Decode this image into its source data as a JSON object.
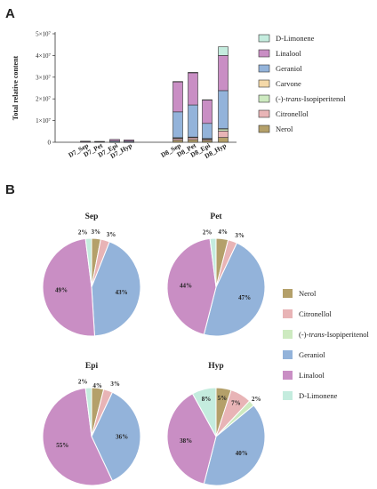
{
  "panel_a_letter": "A",
  "panel_b_letter": "B",
  "chart_data": [
    {
      "type": "bar",
      "stacked": true,
      "ylabel": "Total relative content",
      "ylim": [
        0,
        50000000
      ],
      "yticks": [
        {
          "value": 0,
          "label": "0"
        },
        {
          "value": 10000000,
          "label": "1×10⁷"
        },
        {
          "value": 20000000,
          "label": "2×10⁷"
        },
        {
          "value": 30000000,
          "label": "3×10⁷"
        },
        {
          "value": 40000000,
          "label": "4×10⁷"
        },
        {
          "value": 50000000,
          "label": "5×10⁷"
        }
      ],
      "categories": [
        "D7_Sep",
        "D7_Pet",
        "D7_Epi",
        "D7_Hyp",
        "D8_Sep",
        "D8_Pet",
        "D8_Epi",
        "D8_Hyp"
      ],
      "legend_position": "right",
      "series": [
        {
          "name": "Nerol",
          "color": "#b4a06a",
          "values": [
            0,
            0,
            50000,
            50000,
            900000,
            1200000,
            750000,
            2200000
          ]
        },
        {
          "name": "Citronellol",
          "color": "#e8b4b6",
          "values": [
            0,
            0,
            50000,
            50000,
            800000,
            900000,
            550000,
            3000000
          ]
        },
        {
          "name": "(-)-trans-Isopiperitenol",
          "color": "#cdeac0",
          "values": [
            0,
            0,
            0,
            0,
            300000,
            200000,
            300000,
            900000
          ]
        },
        {
          "name": "Carvone",
          "color": "#f5d9a8",
          "values": [
            0,
            0,
            0,
            0,
            100000,
            100000,
            100000,
            200000
          ]
        },
        {
          "name": "Geraniol",
          "color": "#93b3da",
          "values": [
            200000,
            200000,
            500000,
            400000,
            11900000,
            14800000,
            7000000,
            17500000
          ]
        },
        {
          "name": "Linalool",
          "color": "#c98ec4",
          "values": [
            300000,
            200000,
            700000,
            600000,
            13800000,
            14800000,
            10800000,
            16200000
          ]
        },
        {
          "name": "D-Limonene",
          "color": "#c4ecde",
          "values": [
            0,
            0,
            0,
            0,
            200000,
            200000,
            100000,
            4000000
          ]
        }
      ]
    },
    {
      "type": "pie",
      "title": "Sep",
      "slices": [
        {
          "name": "Nerol",
          "value": 3,
          "label": "3%"
        },
        {
          "name": "Citronellol",
          "value": 3,
          "label": "3%"
        },
        {
          "name": "(-)-trans-Isopiperitenol",
          "value": 0,
          "label": ""
        },
        {
          "name": "Geraniol",
          "value": 43,
          "label": "43%"
        },
        {
          "name": "Linalool",
          "value": 49,
          "label": "49%"
        },
        {
          "name": "D-Limonene",
          "value": 2,
          "label": "2%"
        }
      ]
    },
    {
      "type": "pie",
      "title": "Pet",
      "slices": [
        {
          "name": "Nerol",
          "value": 4,
          "label": "4%"
        },
        {
          "name": "Citronellol",
          "value": 3,
          "label": "3%"
        },
        {
          "name": "(-)-trans-Isopiperitenol",
          "value": 0,
          "label": ""
        },
        {
          "name": "Geraniol",
          "value": 47,
          "label": "47%"
        },
        {
          "name": "Linalool",
          "value": 44,
          "label": "44%"
        },
        {
          "name": "D-Limonene",
          "value": 2,
          "label": "2%"
        }
      ]
    },
    {
      "type": "pie",
      "title": "Epi",
      "slices": [
        {
          "name": "Nerol",
          "value": 4,
          "label": "4%"
        },
        {
          "name": "Citronellol",
          "value": 3,
          "label": "3%"
        },
        {
          "name": "(-)-trans-Isopiperitenol",
          "value": 0,
          "label": ""
        },
        {
          "name": "Geraniol",
          "value": 36,
          "label": "36%"
        },
        {
          "name": "Linalool",
          "value": 55,
          "label": "55%"
        },
        {
          "name": "D-Limonene",
          "value": 2,
          "label": "2%"
        }
      ]
    },
    {
      "type": "pie",
      "title": "Hyp",
      "slices": [
        {
          "name": "Nerol",
          "value": 5,
          "label": "5%"
        },
        {
          "name": "Citronellol",
          "value": 7,
          "label": "7%"
        },
        {
          "name": "(-)-trans-Isopiperitenol",
          "value": 2,
          "label": "2%"
        },
        {
          "name": "Geraniol",
          "value": 40,
          "label": "40%"
        },
        {
          "name": "Linalool",
          "value": 38,
          "label": "38%"
        },
        {
          "name": "D-Limonene",
          "value": 8,
          "label": "8%"
        }
      ]
    }
  ],
  "pie_legend": [
    {
      "name": "Nerol",
      "color": "#b4a06a"
    },
    {
      "name": "Citronellol",
      "color": "#e8b4b6"
    },
    {
      "name": "(-)-trans-Isopiperitenol",
      "color": "#cdeac0"
    },
    {
      "name": "Geraniol",
      "color": "#93b3da"
    },
    {
      "name": "Linalool",
      "color": "#c98ec4"
    },
    {
      "name": "D-Limonene",
      "color": "#c4ecde"
    }
  ]
}
